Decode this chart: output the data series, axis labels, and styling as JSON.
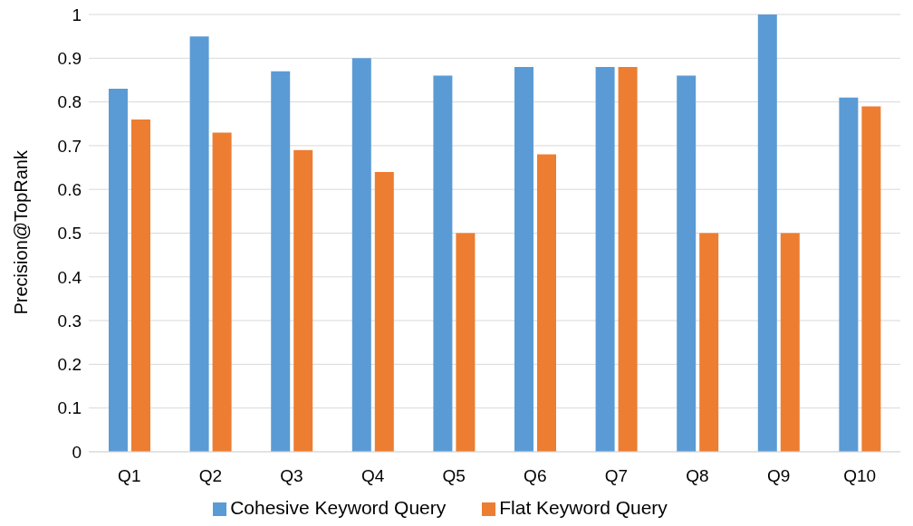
{
  "chart_data": {
    "type": "bar",
    "ylabel": "Precision@TopRank",
    "categories": [
      "Q1",
      "Q2",
      "Q3",
      "Q4",
      "Q5",
      "Q6",
      "Q7",
      "Q8",
      "Q9",
      "Q10"
    ],
    "series": [
      {
        "name": "Cohesive Keyword Query",
        "color": "#5b9bd5",
        "values": [
          0.83,
          0.95,
          0.87,
          0.9,
          0.86,
          0.88,
          0.88,
          0.86,
          1.0,
          0.81
        ]
      },
      {
        "name": "Flat Keyword Query",
        "color": "#ed7d31",
        "values": [
          0.76,
          0.73,
          0.69,
          0.64,
          0.5,
          0.68,
          0.88,
          0.5,
          0.5,
          0.79
        ]
      }
    ],
    "ylim": [
      0,
      1
    ],
    "yticks": [
      0,
      0.1,
      0.2,
      0.3,
      0.4,
      0.5,
      0.6,
      0.7,
      0.8,
      0.9,
      1
    ],
    "grid": "y",
    "legend": "bottom"
  }
}
